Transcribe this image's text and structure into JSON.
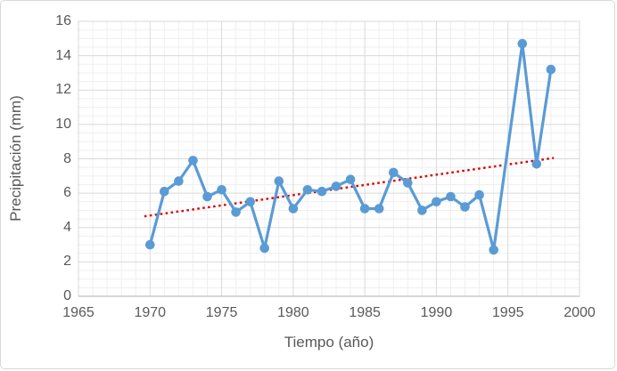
{
  "axes": {
    "x_title": "Tiempo (año)",
    "y_title": "Precipitación (mm)"
  },
  "colors": {
    "series": "#5B9BD5",
    "trend": "#E00000",
    "grid_major": "#D9D9D9",
    "grid_minor": "#EFEFEF",
    "axis_line": "#BFBFBF",
    "text": "#595959",
    "frame_border": "#D8D8D8",
    "background": "#FFFFFF"
  },
  "chart_data": {
    "type": "line",
    "title": "",
    "xlabel": "Tiempo (año)",
    "ylabel": "Precipitación (mm)",
    "xlim": [
      1965,
      2000
    ],
    "ylim": [
      0,
      16
    ],
    "x_ticks": [
      1965,
      1970,
      1975,
      1980,
      1985,
      1990,
      1995,
      2000
    ],
    "y_ticks": [
      0,
      2,
      4,
      6,
      8,
      10,
      12,
      14,
      16
    ],
    "grid": {
      "major": true,
      "minor": true,
      "minor_x_step_years": 1,
      "minor_y_step_mm": 0.5
    },
    "legend": "none",
    "series": [
      {
        "marker": "circle",
        "color": "#5B9BD5",
        "x": [
          1970,
          1971,
          1972,
          1973,
          1974,
          1975,
          1976,
          1977,
          1978,
          1979,
          1980,
          1981,
          1982,
          1983,
          1984,
          1985,
          1986,
          1987,
          1988,
          1989,
          1990,
          1991,
          1992,
          1993,
          1994,
          1995,
          1996,
          1997,
          1998
        ],
        "y": [
          3.0,
          6.1,
          6.7,
          7.9,
          5.8,
          6.2,
          4.9,
          5.5,
          2.8,
          6.7,
          5.1,
          6.2,
          6.1,
          6.4,
          6.8,
          5.1,
          5.1,
          7.2,
          6.6,
          5.0,
          5.5,
          5.8,
          5.2,
          5.9,
          2.7,
          null,
          14.7,
          7.7,
          13.2
        ],
        "note": "no data point for 1995; line connects 1994 to 1996 directly"
      }
    ],
    "trendline": {
      "style": "dotted",
      "color": "#E00000",
      "x": [
        1969.6,
        1998.2
      ],
      "y": [
        4.65,
        8.05
      ]
    }
  }
}
